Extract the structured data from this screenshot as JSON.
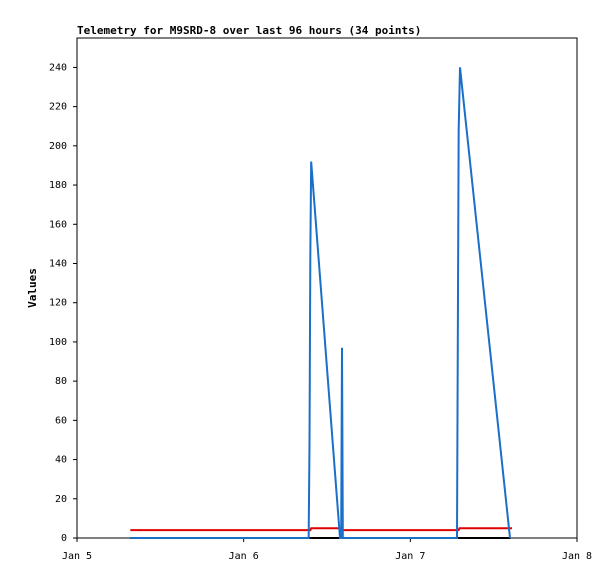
{
  "chart_data": {
    "type": "line",
    "title": "Telemetry for M9SRD-8 over last 96 hours (34 points)",
    "ylabel": "Values",
    "xlim": [
      5,
      8
    ],
    "xticks": [
      {
        "value": 5,
        "label": "Jan 5"
      },
      {
        "value": 6,
        "label": "Jan 6"
      },
      {
        "value": 7,
        "label": "Jan 7"
      },
      {
        "value": 8,
        "label": "Jan 8"
      }
    ],
    "ylim": [
      0,
      255
    ],
    "yticks": [
      0,
      20,
      40,
      60,
      80,
      100,
      120,
      140,
      160,
      180,
      200,
      220,
      240
    ],
    "grid": false,
    "series": [
      {
        "color": "#000000",
        "x": [
          5.32,
          7.6
        ],
        "values": [
          0,
          0
        ]
      },
      {
        "color": "#e00000",
        "x": [
          5.32,
          6.4,
          6.405,
          6.58,
          6.585,
          7.29,
          7.295,
          7.61
        ],
        "values": [
          4,
          4,
          5,
          5,
          4,
          4,
          5,
          5
        ]
      },
      {
        "color": "#1a6fc9",
        "x": [
          5.32,
          6.39,
          6.395,
          6.4,
          6.405,
          6.578,
          6.585,
          6.59,
          6.595,
          7.28,
          7.285,
          7.29,
          7.298,
          7.598
        ],
        "values": [
          0,
          0,
          48,
          145,
          192,
          0,
          0,
          97,
          0,
          0,
          104,
          208,
          240,
          0
        ]
      }
    ]
  }
}
